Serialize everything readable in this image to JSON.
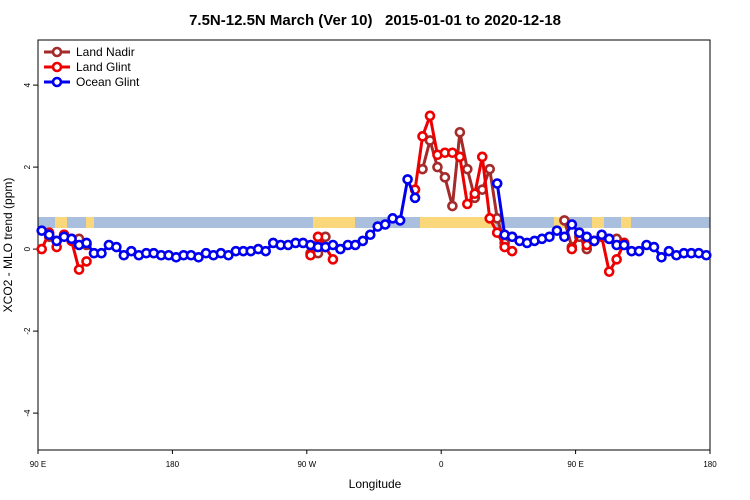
{
  "chart_data": {
    "type": "line",
    "title": "7.5N-12.5N March (Ver 10)   2015-01-01 to 2020-12-18",
    "x_label": "Longitude",
    "y_label": "XCO2 - MLO trend (ppm)",
    "xlim": [
      90,
      540
    ],
    "xticks": [
      {
        "value": 90,
        "label": "90 E"
      },
      {
        "value": 180,
        "label": "180"
      },
      {
        "value": 270,
        "label": "90 W"
      },
      {
        "value": 360,
        "label": "0"
      },
      {
        "value": 450,
        "label": "90 E"
      },
      {
        "value": 540,
        "label": "180"
      }
    ],
    "ylim": [
      -4.9,
      5.1
    ],
    "yticks": [
      -4,
      -2,
      0,
      2,
      4
    ],
    "legend": "upper left",
    "x": [
      92.5,
      97.5,
      102.5,
      107.5,
      112.5,
      117.5,
      122.5,
      127.5,
      132.5,
      137.5,
      142.5,
      147.5,
      152.5,
      157.5,
      162.5,
      167.5,
      172.5,
      177.5,
      182.5,
      187.5,
      192.5,
      197.5,
      202.5,
      207.5,
      212.5,
      217.5,
      222.5,
      227.5,
      232.5,
      237.5,
      242.5,
      247.5,
      252.5,
      257.5,
      262.5,
      267.5,
      272.5,
      277.5,
      282.5,
      287.5,
      292.5,
      297.5,
      302.5,
      307.5,
      312.5,
      317.5,
      322.5,
      327.5,
      332.5,
      337.5,
      342.5,
      347.5,
      352.5,
      357.5,
      362.5,
      367.5,
      372.5,
      377.5,
      382.5,
      387.5,
      392.5,
      397.5,
      402.5,
      407.5,
      412.5,
      417.5,
      422.5,
      427.5,
      432.5,
      437.5,
      442.5,
      447.5,
      452.5,
      457.5,
      462.5,
      467.5,
      472.5,
      477.5,
      482.5,
      487.5,
      492.5,
      497.5,
      502.5,
      507.5,
      512.5,
      517.5,
      522.5,
      527.5,
      532.5,
      537.5
    ],
    "series": [
      {
        "name": "Land Nadir",
        "color": "#a52a2a",
        "values": [
          null,
          0.3,
          0.2,
          0.35,
          0.25,
          0.25,
          0.1,
          null,
          null,
          null,
          null,
          null,
          null,
          null,
          null,
          null,
          null,
          null,
          null,
          null,
          null,
          null,
          null,
          null,
          null,
          null,
          null,
          null,
          null,
          null,
          null,
          null,
          null,
          null,
          null,
          null,
          -0.1,
          -0.1,
          0.3,
          null,
          null,
          null,
          null,
          null,
          null,
          null,
          null,
          null,
          null,
          null,
          null,
          1.95,
          2.65,
          2.0,
          1.75,
          1.05,
          2.85,
          1.95,
          1.25,
          1.45,
          1.95,
          0.75,
          0.15,
          0.3,
          null,
          null,
          null,
          null,
          null,
          null,
          0.7,
          0.05,
          0.3,
          0.0,
          0.2,
          0.3,
          0.25,
          0.25,
          0.15,
          null,
          null,
          null,
          null,
          null,
          null,
          null,
          null,
          null,
          null,
          null
        ]
      },
      {
        "name": "Land Glint",
        "color": "#ee0000",
        "values": [
          0.0,
          0.4,
          0.05,
          0.35,
          0.2,
          -0.5,
          -0.3,
          null,
          null,
          null,
          null,
          null,
          null,
          null,
          null,
          null,
          null,
          null,
          null,
          null,
          null,
          null,
          null,
          null,
          null,
          null,
          null,
          null,
          null,
          null,
          null,
          null,
          null,
          null,
          null,
          null,
          -0.15,
          0.3,
          0.05,
          -0.25,
          null,
          null,
          null,
          null,
          null,
          null,
          null,
          null,
          null,
          null,
          1.45,
          2.75,
          3.25,
          2.3,
          2.35,
          2.35,
          2.25,
          1.1,
          1.35,
          2.25,
          0.75,
          0.4,
          0.05,
          -0.05,
          null,
          null,
          null,
          null,
          null,
          null,
          null,
          0.0,
          0.4,
          0.1,
          0.2,
          0.3,
          -0.55,
          -0.25,
          0.15,
          null,
          null,
          null,
          null,
          null,
          null,
          null,
          null,
          null,
          null,
          null
        ]
      },
      {
        "name": "Ocean Glint",
        "color": "#0000ee",
        "values": [
          0.45,
          0.35,
          0.2,
          0.3,
          0.25,
          0.1,
          0.15,
          -0.1,
          -0.1,
          0.1,
          0.05,
          -0.15,
          -0.05,
          -0.15,
          -0.1,
          -0.1,
          -0.15,
          -0.15,
          -0.2,
          -0.15,
          -0.15,
          -0.2,
          -0.1,
          -0.15,
          -0.1,
          -0.15,
          -0.05,
          -0.05,
          -0.05,
          0.0,
          -0.05,
          0.15,
          0.1,
          0.1,
          0.15,
          0.15,
          0.1,
          0.05,
          0.05,
          0.1,
          0.0,
          0.1,
          0.1,
          0.2,
          0.35,
          0.55,
          0.6,
          0.75,
          0.7,
          1.7,
          1.25,
          null,
          null,
          null,
          null,
          null,
          null,
          null,
          null,
          null,
          null,
          1.6,
          0.35,
          0.3,
          0.2,
          0.15,
          0.2,
          0.25,
          0.3,
          0.45,
          0.3,
          0.6,
          0.4,
          0.3,
          0.2,
          0.35,
          0.25,
          0.1,
          0.1,
          -0.05,
          -0.05,
          0.1,
          0.05,
          -0.2,
          -0.05,
          -0.15,
          -0.1,
          -0.1,
          -0.1,
          -0.15
        ]
      }
    ]
  }
}
